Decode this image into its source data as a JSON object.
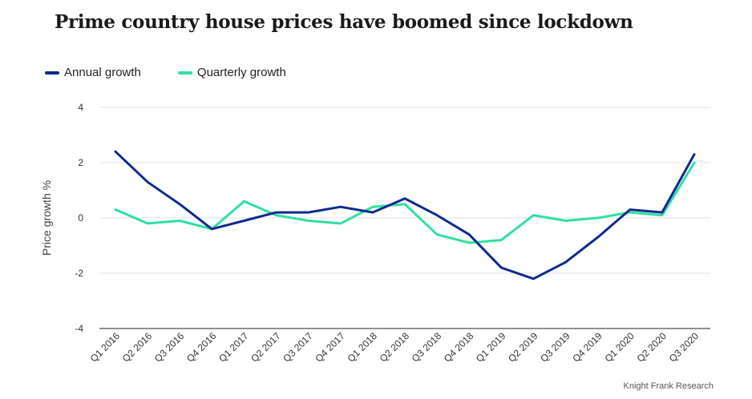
{
  "title": "Prime country house prices have boomed since lockdown",
  "source": "Knight Frank Research",
  "chart_data": {
    "type": "line",
    "title": "Prime country house prices have boomed since lockdown",
    "ylabel": "Price growth %",
    "xlabel": "",
    "ylim": [
      -4,
      4
    ],
    "yticks": [
      4,
      2,
      0,
      -2,
      -4
    ],
    "grid": true,
    "legend_position": "top-left",
    "categories": [
      "Q1 2016",
      "Q2 2016",
      "Q3 2016",
      "Q4 2016",
      "Q1 2017",
      "Q2 2017",
      "Q3 2017",
      "Q4 2017",
      "Q1 2018",
      "Q2 2018",
      "Q3 2018",
      "Q4 2018",
      "Q1 2019",
      "Q2 2019",
      "Q3 2019",
      "Q4 2019",
      "Q1 2020",
      "Q2 2020",
      "Q3 2020"
    ],
    "series": [
      {
        "name": "Annual growth",
        "color": "#0f2a8f",
        "values": [
          2.4,
          1.3,
          0.5,
          -0.4,
          -0.1,
          0.2,
          0.2,
          0.4,
          0.2,
          0.7,
          0.1,
          -0.6,
          -1.8,
          -2.2,
          -1.6,
          -0.7,
          0.3,
          0.2,
          2.3
        ]
      },
      {
        "name": "Quarterly growth",
        "color": "#2fe0a0",
        "values": [
          0.3,
          -0.2,
          -0.1,
          -0.4,
          0.6,
          0.1,
          -0.1,
          -0.2,
          0.4,
          0.5,
          -0.6,
          -0.9,
          -0.8,
          0.1,
          -0.1,
          0.0,
          0.2,
          0.1,
          2.0
        ]
      }
    ]
  }
}
